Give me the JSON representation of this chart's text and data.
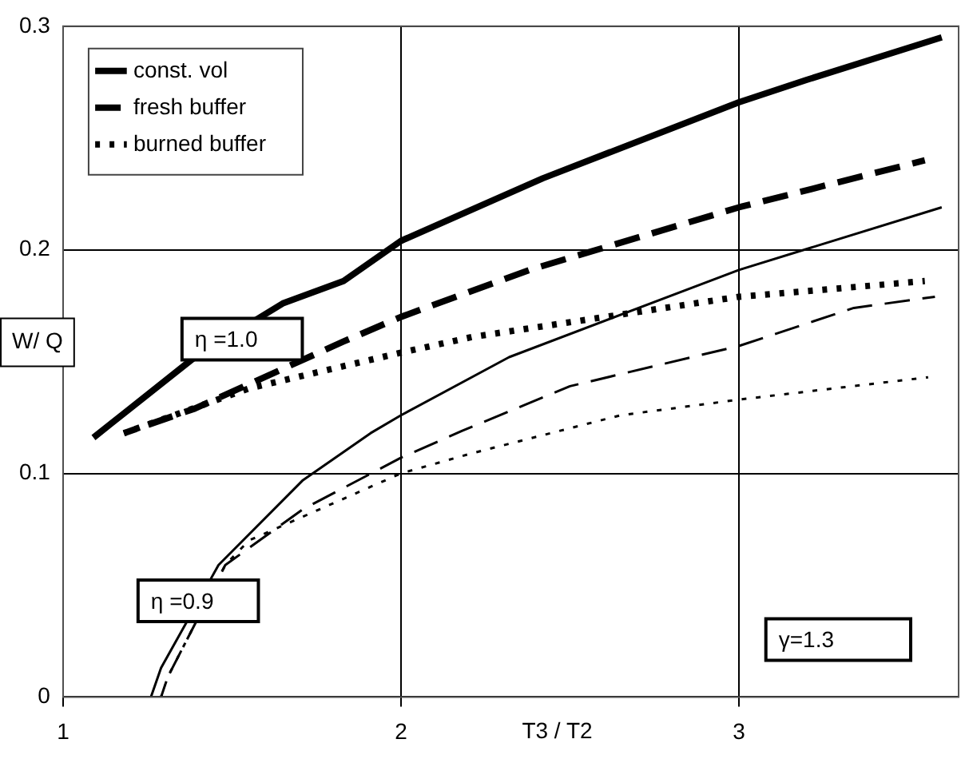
{
  "chart_data": {
    "type": "line",
    "xlabel": "T3 / T2",
    "ylabel": "W/ Q",
    "xlim": [
      1,
      3.65
    ],
    "xticks": [
      1,
      2,
      3
    ],
    "ylim": [
      0,
      0.3
    ],
    "yticks": [
      0,
      0.1,
      0.2,
      0.3
    ],
    "grid": true,
    "legend": "top left",
    "marker": "none",
    "series": [
      {
        "name": "const. vol",
        "color": "#000000",
        "line_style": "solid",
        "x": [
          1.09,
          1.14,
          1.39,
          1.65,
          1.83,
          2.0,
          2.42,
          3.0,
          3.2,
          3.6
        ],
        "values": [
          0.116,
          0.122,
          0.152,
          0.176,
          0.186,
          0.204,
          0.232,
          0.266,
          0.276,
          0.295
        ]
      },
      {
        "name": "fresh buffer",
        "color": "#000000",
        "line_style": "dashed",
        "x": [
          1.18,
          1.39,
          1.83,
          2.0,
          2.38,
          3.0,
          3.55
        ],
        "values": [
          0.118,
          0.129,
          0.159,
          0.17,
          0.191,
          0.219,
          0.24
        ]
      },
      {
        "name": "burned buffer",
        "color": "#000000",
        "line_style": "dotted",
        "x": [
          1.18,
          1.55,
          2.0,
          2.21,
          2.78,
          3.0,
          3.55
        ],
        "values": [
          0.118,
          0.138,
          0.154,
          0.161,
          0.174,
          0.179,
          0.186
        ]
      },
      {
        "color": "#000000",
        "line_style": "solid",
        "x": [
          1.26,
          1.29,
          1.46,
          1.71,
          1.91,
          2.0,
          2.32,
          3.0,
          3.6
        ],
        "values": [
          0,
          0.013,
          0.059,
          0.097,
          0.118,
          0.126,
          0.152,
          0.191,
          0.219
        ]
      },
      {
        "color": "#000000",
        "line_style": "dashed",
        "x": [
          1.29,
          1.31,
          1.48,
          1.71,
          2.0,
          2.18,
          2.5,
          3.0,
          3.34,
          3.58
        ],
        "values": [
          0,
          0.009,
          0.059,
          0.084,
          0.107,
          0.119,
          0.139,
          0.157,
          0.174,
          0.179
        ]
      },
      {
        "color": "#000000",
        "line_style": "dotted",
        "x": [
          1.29,
          1.31,
          1.48,
          1.55,
          2.0,
          2.21,
          2.65,
          3.0,
          3.56
        ],
        "values": [
          0,
          0.009,
          0.059,
          0.07,
          0.1,
          0.109,
          0.126,
          0.133,
          0.143
        ]
      }
    ],
    "annotations": [
      {
        "text": "η =1.0",
        "x": 1.53,
        "y": 0.16
      },
      {
        "text": "η =0.9",
        "x": 1.4,
        "y": 0.043
      },
      "γ=1.3"
    ]
  }
}
